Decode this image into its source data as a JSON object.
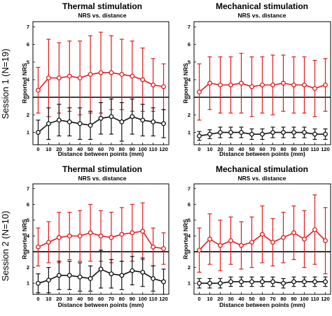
{
  "row_labels": [
    "Session 1 (N=19)",
    "Session 2 (N=10)"
  ],
  "colors": {
    "high_series": "#e21b1b",
    "low_series": "#111111",
    "reference_line": "#000000"
  },
  "chart_data": [
    {
      "type": "line",
      "title": "Thermal stimulation",
      "subtitle": "NRS vs. distance",
      "xlabel": "Distance between points (mm)",
      "ylabel": "Reported NRS",
      "x": [
        0,
        10,
        20,
        30,
        40,
        50,
        60,
        70,
        80,
        90,
        100,
        110,
        120
      ],
      "ylim": [
        0.3,
        7.3
      ],
      "yticks": [
        1,
        2,
        3,
        4,
        5,
        6,
        7
      ],
      "reference_line": 3,
      "series": [
        {
          "color": "#e21b1b",
          "values": [
            3.4,
            4.1,
            4.1,
            4.2,
            4.1,
            4.3,
            4.4,
            4.4,
            4.3,
            4.2,
            4.0,
            3.7,
            3.6
          ],
          "errors": [
            1.3,
            2.2,
            2.0,
            2.0,
            2.1,
            2.2,
            2.3,
            2.1,
            2.0,
            2.0,
            1.8,
            1.5,
            1.3
          ]
        },
        {
          "color": "#111111",
          "values": [
            1.0,
            1.5,
            1.7,
            1.6,
            1.5,
            1.4,
            1.8,
            1.9,
            1.6,
            1.9,
            1.7,
            1.6,
            1.5
          ],
          "errors": [
            0.7,
            0.9,
            0.9,
            0.8,
            0.9,
            0.8,
            0.9,
            1.0,
            1.1,
            1.0,
            0.9,
            0.8,
            0.8
          ]
        }
      ]
    },
    {
      "type": "line",
      "title": "Mechanical stimulation",
      "subtitle": "NRS vs. distance",
      "xlabel": "Distance between points (mm)",
      "ylabel": "Reported NRS",
      "x": [
        0,
        10,
        20,
        30,
        40,
        50,
        60,
        70,
        80,
        90,
        100,
        110,
        120
      ],
      "ylim": [
        0.3,
        7.3
      ],
      "yticks": [
        1,
        2,
        3,
        4,
        5,
        6,
        7
      ],
      "reference_line": 3,
      "series": [
        {
          "color": "#e21b1b",
          "values": [
            3.3,
            3.8,
            3.7,
            3.7,
            3.8,
            3.6,
            3.7,
            3.7,
            3.8,
            3.7,
            3.7,
            3.5,
            3.7
          ],
          "errors": [
            1.6,
            1.5,
            1.6,
            1.6,
            1.7,
            1.7,
            1.6,
            1.7,
            1.6,
            1.6,
            1.6,
            1.6,
            1.5
          ]
        },
        {
          "color": "#111111",
          "values": [
            0.8,
            0.9,
            1.0,
            1.0,
            1.0,
            0.9,
            0.9,
            1.0,
            1.0,
            1.0,
            1.0,
            0.9,
            0.9
          ],
          "errors": [
            0.25,
            0.25,
            0.3,
            0.3,
            0.3,
            0.3,
            0.3,
            0.3,
            0.3,
            0.3,
            0.3,
            0.3,
            0.3
          ]
        }
      ]
    },
    {
      "type": "line",
      "title": "Thermal stimulation",
      "subtitle": "NRS vs. distance",
      "xlabel": "Distance between points (mm)",
      "ylabel": "Reported NRS",
      "x": [
        0,
        10,
        20,
        30,
        40,
        50,
        60,
        70,
        80,
        90,
        100,
        110,
        120
      ],
      "ylim": [
        0.3,
        7.3
      ],
      "yticks": [
        1,
        2,
        3,
        4,
        5,
        6,
        7
      ],
      "reference_line": 3,
      "series": [
        {
          "color": "#e21b1b",
          "values": [
            3.3,
            3.6,
            3.9,
            4.0,
            4.0,
            4.2,
            4.0,
            3.9,
            4.1,
            4.2,
            4.3,
            3.3,
            3.2
          ],
          "errors": [
            1.2,
            1.3,
            1.6,
            1.5,
            1.6,
            1.8,
            1.6,
            1.6,
            1.7,
            1.8,
            1.8,
            1.2,
            1.0
          ]
        },
        {
          "color": "#111111",
          "values": [
            1.0,
            1.2,
            1.5,
            1.5,
            1.4,
            1.3,
            1.9,
            1.6,
            1.5,
            1.8,
            1.7,
            1.3,
            1.1
          ],
          "errors": [
            0.6,
            0.8,
            0.9,
            0.9,
            0.9,
            0.8,
            1.2,
            0.9,
            0.9,
            0.9,
            0.9,
            0.8,
            0.8
          ]
        }
      ]
    },
    {
      "type": "line",
      "title": "Mechanical stimulation",
      "subtitle": "NRS vs. distance",
      "xlabel": "Distance between points (mm)",
      "ylabel": "Reported NRS",
      "x": [
        0,
        10,
        20,
        30,
        40,
        50,
        60,
        70,
        80,
        90,
        100,
        110,
        120
      ],
      "ylim": [
        0.3,
        7.3
      ],
      "yticks": [
        1,
        2,
        3,
        4,
        5,
        6,
        7
      ],
      "reference_line": 3,
      "series": [
        {
          "color": "#e21b1b",
          "values": [
            3.1,
            3.8,
            3.4,
            3.7,
            3.4,
            3.6,
            4.1,
            3.6,
            3.9,
            4.2,
            3.8,
            4.4,
            3.7
          ],
          "errors": [
            1.4,
            1.6,
            1.6,
            1.5,
            1.5,
            1.6,
            1.8,
            1.5,
            1.6,
            1.7,
            1.8,
            2.2,
            2.1
          ]
        },
        {
          "color": "#111111",
          "values": [
            1.0,
            1.0,
            1.0,
            1.1,
            1.1,
            1.1,
            1.1,
            1.1,
            1.0,
            1.1,
            1.1,
            1.1,
            1.1
          ],
          "errors": [
            0.3,
            0.3,
            0.3,
            0.3,
            0.3,
            0.3,
            0.3,
            0.3,
            0.3,
            0.3,
            0.3,
            0.3,
            0.3
          ]
        }
      ]
    }
  ]
}
